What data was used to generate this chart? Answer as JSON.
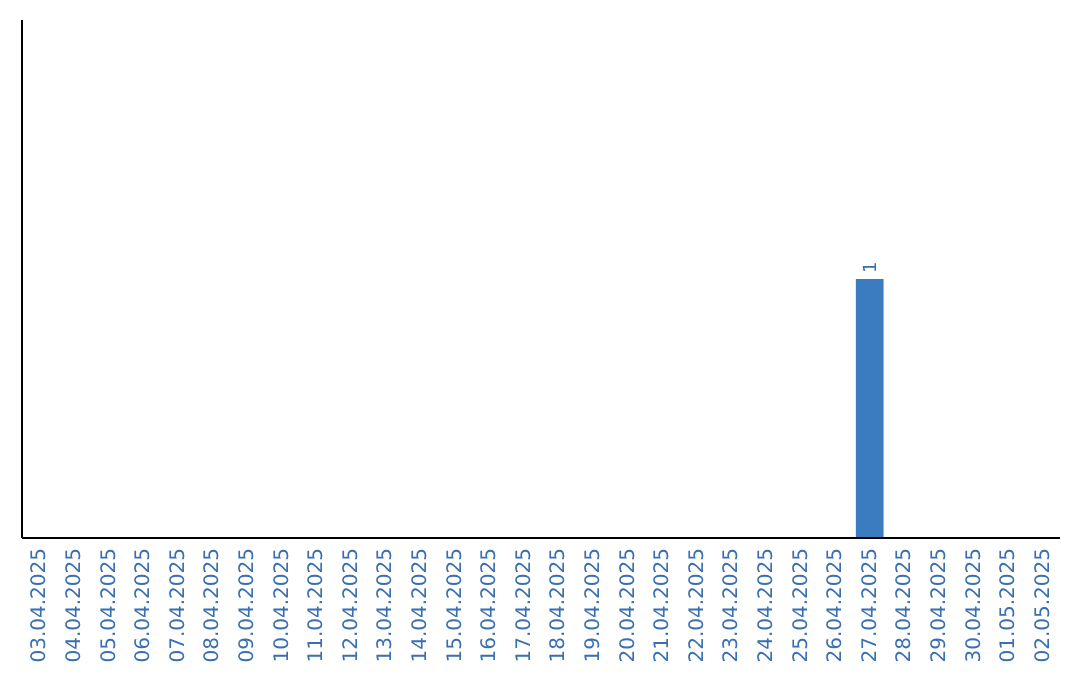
{
  "chart_data": {
    "type": "bar",
    "categories": [
      "03.04.2025",
      "04.04.2025",
      "05.04.2025",
      "06.04.2025",
      "07.04.2025",
      "08.04.2025",
      "09.04.2025",
      "10.04.2025",
      "11.04.2025",
      "12.04.2025",
      "13.04.2025",
      "14.04.2025",
      "15.04.2025",
      "16.04.2025",
      "17.04.2025",
      "18.04.2025",
      "19.04.2025",
      "20.04.2025",
      "21.04.2025",
      "22.04.2025",
      "23.04.2025",
      "24.04.2025",
      "25.04.2025",
      "26.04.2025",
      "27.04.2025",
      "28.04.2025",
      "29.04.2025",
      "30.04.2025",
      "01.05.2025",
      "02.05.2025"
    ],
    "values": [
      null,
      null,
      null,
      null,
      null,
      null,
      null,
      null,
      null,
      null,
      null,
      null,
      null,
      null,
      null,
      null,
      null,
      null,
      null,
      null,
      null,
      null,
      null,
      null,
      1,
      null,
      null,
      null,
      null,
      null
    ],
    "value_labels": [
      null,
      null,
      null,
      null,
      null,
      null,
      null,
      null,
      null,
      null,
      null,
      null,
      null,
      null,
      null,
      null,
      null,
      null,
      null,
      null,
      null,
      null,
      null,
      null,
      "1",
      null,
      null,
      null,
      null,
      null
    ],
    "color": "#3b7bbf",
    "ylim": [
      0,
      2
    ],
    "tick_labels": "x"
  }
}
